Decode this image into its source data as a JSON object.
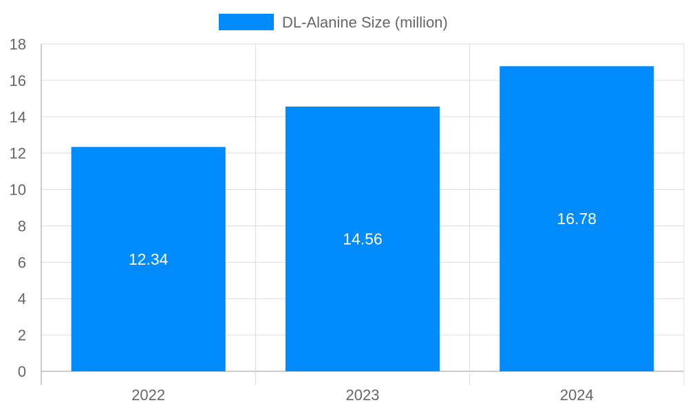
{
  "chart_data": {
    "type": "bar",
    "categories": [
      "2022",
      "2023",
      "2024"
    ],
    "series": [
      {
        "name": "DL-Alanine Size (million)",
        "values": [
          12.34,
          14.56,
          16.78
        ],
        "color": "#008BFC"
      }
    ],
    "data_labels": [
      "12.34",
      "14.56",
      "16.78"
    ],
    "title": "",
    "xlabel": "",
    "ylabel": "",
    "ylim": [
      0,
      18
    ],
    "yticks": [
      "0",
      "2",
      "4",
      "6",
      "8",
      "10",
      "12",
      "14",
      "16",
      "18"
    ],
    "grid": true,
    "legend_position": "top"
  }
}
